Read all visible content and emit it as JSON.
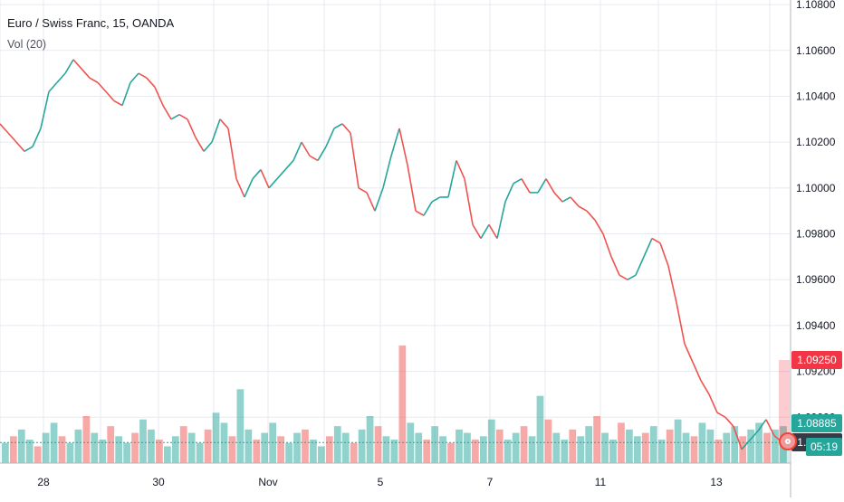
{
  "window": {
    "title": "Euro / Swiss Franc, 15, OANDA",
    "volume_label": "Vol (20)"
  },
  "price_axis": {
    "ticks": [
      "1.10800",
      "1.10600",
      "1.10400",
      "1.10200",
      "1.10000",
      "1.09800",
      "1.09600",
      "1.09400",
      "1.09200",
      "1.09000"
    ]
  },
  "time_axis": {
    "labels": [
      "28",
      "30",
      "Nov",
      "5",
      "7",
      "11",
      "13"
    ]
  },
  "price_tags": {
    "alert": "1.09250",
    "last": "1.08890",
    "bid": "1.08885",
    "countdown": "05:19"
  },
  "colors": {
    "up": "#26a69a",
    "down": "#ef5350",
    "alert": "#f23645",
    "last": "#363a45",
    "grid": "#e6eaf0"
  },
  "chart_data": {
    "type": "line",
    "series": [
      {
        "values": [
          1.1028,
          1.1024,
          1.102,
          1.1016,
          1.1018,
          1.1026,
          1.1042,
          1.1046,
          1.105,
          1.1056,
          1.1052,
          1.1048,
          1.1046,
          1.1042,
          1.1038,
          1.1036,
          1.1046,
          1.105,
          1.1048,
          1.1044,
          1.1036,
          1.103,
          1.1032,
          1.103,
          1.1022,
          1.1016,
          1.102,
          1.103,
          1.1026,
          1.1004,
          1.0996,
          1.1004,
          1.1008,
          1.1,
          1.1004,
          1.1008,
          1.1012,
          1.102,
          1.1014,
          1.1012,
          1.1018,
          1.1026,
          1.1028,
          1.1024,
          1.1,
          1.0998,
          1.099,
          1.1,
          1.1014,
          1.1026,
          1.101,
          1.099,
          1.0988,
          1.0994,
          1.0996,
          1.0996,
          1.1012,
          1.1004,
          1.0984,
          1.0978,
          1.0984,
          1.0978,
          1.0994,
          1.1002,
          1.1004,
          1.0998,
          1.0998,
          1.1004,
          1.0998,
          1.0994,
          1.0996,
          1.0992,
          1.099,
          1.0986,
          1.098,
          1.097,
          1.0962,
          1.096,
          1.0962,
          1.097,
          1.0978,
          1.0976,
          1.0966,
          1.095,
          1.0932,
          1.0924,
          1.0916,
          1.091,
          1.0902,
          1.09,
          1.0896,
          1.0886,
          1.089,
          1.0894,
          1.0899,
          1.0892,
          1.0889
        ]
      }
    ],
    "ylim": [
      1.088,
      1.1082
    ],
    "yticks": [
      1.108,
      1.106,
      1.104,
      1.102,
      1.1,
      1.098,
      1.096,
      1.094,
      1.092,
      1.09
    ],
    "xlabels": [
      "28",
      "30",
      "Nov",
      "5",
      "7",
      "11",
      "13"
    ],
    "volume_profile": [
      6,
      8,
      10,
      7,
      5,
      9,
      12,
      8,
      6,
      10,
      14,
      9,
      7,
      11,
      8,
      6,
      9,
      13,
      10,
      7,
      5,
      8,
      11,
      9,
      6,
      10,
      15,
      12,
      8,
      22,
      10,
      7,
      9,
      12,
      8,
      6,
      9,
      10,
      7,
      5,
      8,
      11,
      9,
      6,
      10,
      14,
      11,
      8,
      7,
      35,
      12,
      9,
      7,
      11,
      8,
      6,
      10,
      9,
      7,
      8,
      13,
      10,
      7,
      9,
      11,
      8,
      20,
      13,
      9,
      7,
      10,
      8,
      11,
      14,
      9,
      7,
      12,
      10,
      8,
      9,
      11,
      7,
      10,
      13,
      9,
      8,
      12,
      10,
      7,
      9,
      11,
      8,
      10,
      12,
      9,
      10,
      11
    ],
    "volume_colors": "alternating up/down",
    "grid": true,
    "last_price": 1.0889,
    "alert_price": 1.0925,
    "bid_price": 1.08885,
    "countdown": "05:19"
  }
}
